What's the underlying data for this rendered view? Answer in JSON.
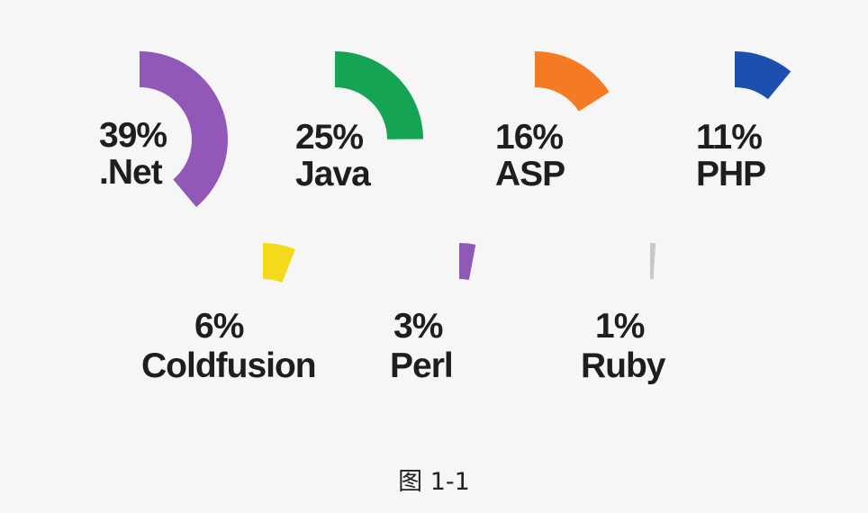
{
  "chart_data": {
    "type": "radial-bar",
    "unit": "%",
    "categories": [
      ".Net",
      "Java",
      "ASP",
      "PHP",
      "Coldfusion",
      "Perl",
      "Ruby"
    ],
    "values": [
      39,
      25,
      16,
      11,
      6,
      3,
      1
    ],
    "value_labels": [
      "39%",
      "25%",
      "16%",
      "11%",
      "6%",
      "3%",
      "1%"
    ],
    "colors": [
      "#9258b8",
      "#14a454",
      "#f47a24",
      "#1d4fae",
      "#f3da1b",
      "#9258b8",
      "#c8c8c8"
    ]
  },
  "caption": "图 1-1"
}
